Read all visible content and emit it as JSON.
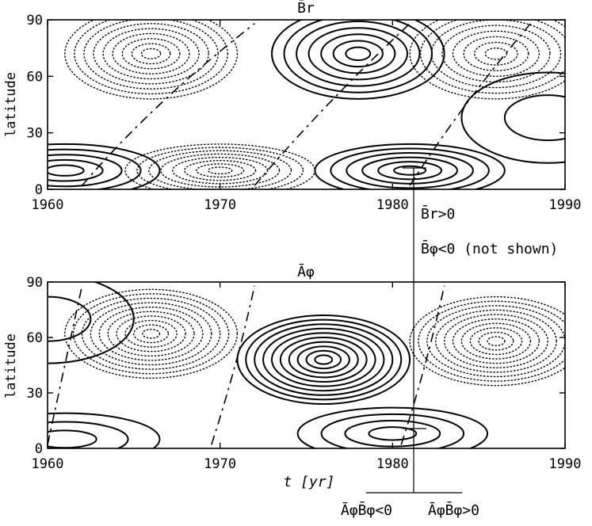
{
  "chart_data": [
    {
      "type": "contour",
      "title": "B̄r",
      "xlabel": "",
      "ylabel": "latitude",
      "xlim": [
        1960,
        1990
      ],
      "ylim": [
        0,
        90
      ],
      "xticks": [
        1960,
        1970,
        1980,
        1990
      ],
      "yticks": [
        0,
        30,
        60,
        90
      ],
      "line_styles": {
        "positive": "solid",
        "negative": "dotted",
        "zero": "dash-dot"
      },
      "features": [
        {
          "sign": "positive",
          "center": [
            1961,
            10
          ],
          "levels": 5
        },
        {
          "sign": "negative",
          "center": [
            1970,
            10
          ],
          "levels": 8
        },
        {
          "sign": "positive",
          "center": [
            1981,
            10
          ],
          "levels": 6
        },
        {
          "sign": "negative",
          "center": [
            1966,
            72
          ],
          "levels": 9
        },
        {
          "sign": "positive",
          "center": [
            1978,
            72
          ],
          "levels": 7
        },
        {
          "sign": "negative",
          "center": [
            1986,
            72
          ],
          "levels": 8
        },
        {
          "sign": "positive",
          "center": [
            1989,
            38
          ],
          "levels": 2
        }
      ]
    },
    {
      "type": "contour",
      "title": "Āφ",
      "xlabel": "t [yr]",
      "ylabel": "latitude",
      "xlim": [
        1960,
        1990
      ],
      "ylim": [
        0,
        90
      ],
      "xticks": [
        1960,
        1970,
        1980,
        1990
      ],
      "yticks": [
        0,
        30,
        60,
        90
      ],
      "line_styles": {
        "positive": "solid",
        "negative": "dotted",
        "zero": "dash-dot"
      },
      "features": [
        {
          "sign": "negative",
          "center": [
            1966,
            62
          ],
          "levels": 10
        },
        {
          "sign": "positive",
          "center": [
            1976,
            48
          ],
          "levels": 10
        },
        {
          "sign": "negative",
          "center": [
            1986,
            58
          ],
          "levels": 10
        },
        {
          "sign": "positive",
          "center": [
            1961,
            5
          ],
          "levels": 3
        },
        {
          "sign": "positive",
          "center": [
            1980,
            8
          ],
          "levels": 4
        },
        {
          "sign": "positive",
          "center": [
            1960,
            70
          ],
          "levels": 2
        }
      ]
    }
  ],
  "annotations": {
    "marker_year": 1981,
    "label_br": "B̄r>0",
    "label_bphi": "B̄φ<0 (not shown)",
    "label_left": "ĀφB̄φ<0",
    "label_right": "ĀφB̄φ>0"
  }
}
